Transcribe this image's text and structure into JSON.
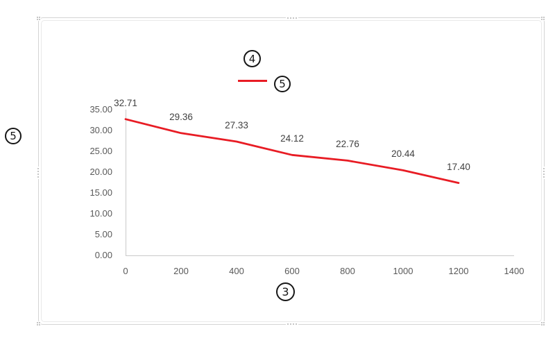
{
  "chart_data": {
    "type": "line",
    "x": [
      0,
      200,
      400,
      600,
      800,
      1000,
      1200
    ],
    "values": [
      32.71,
      29.36,
      27.33,
      24.12,
      22.76,
      20.44,
      17.4
    ],
    "data_labels": [
      "32.71",
      "29.36",
      "27.33",
      "24.12",
      "22.76",
      "20.44",
      "17.40"
    ],
    "x_ticks": [
      "0",
      "200",
      "400",
      "600",
      "800",
      "1000",
      "1200",
      "1400"
    ],
    "y_ticks": [
      "0.00",
      "5.00",
      "10.00",
      "15.00",
      "20.00",
      "25.00",
      "30.00",
      "35.00"
    ],
    "xlim": [
      0,
      1400
    ],
    "ylim": [
      0,
      35
    ],
    "grid": false,
    "legend_position": "top-center",
    "title": "",
    "xlabel": "",
    "ylabel": ""
  },
  "annotations": {
    "chart_title_marker": "4",
    "legend_marker": "5",
    "y_axis_title_marker": "5",
    "x_axis_title_marker": "3"
  },
  "colors": {
    "series": "#e81c24",
    "axis_line": "#c9c9c9",
    "tick_label": "#595959",
    "data_label": "#3f3f3f",
    "frame_border": "#d4d4d4"
  }
}
